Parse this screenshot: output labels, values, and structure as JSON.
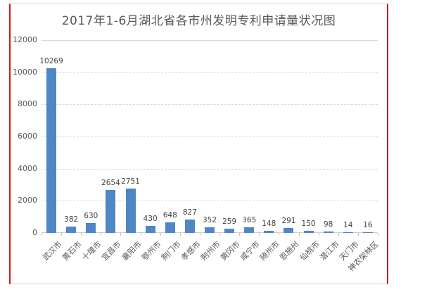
{
  "window": {
    "background": "#FFFFFF"
  },
  "frame": {
    "side_border_color": "#C81A1A",
    "top_border_color": "#D9D9D9",
    "bottom_border_color": "#EACACA"
  },
  "chart_data": {
    "type": "bar",
    "title": "2017年1-6月湖北省各市州发明专利申请量状况图",
    "categories": [
      "武汉市",
      "黄石市",
      "十堰市",
      "宜昌市",
      "襄阳市",
      "鄂州市",
      "荆门市",
      "孝感市",
      "荆州市",
      "黄冈市",
      "咸宁市",
      "随州市",
      "恩施州",
      "仙桃市",
      "潜江市",
      "天门市",
      "神农架林区"
    ],
    "values": [
      10269,
      382,
      630,
      2654,
      2751,
      430,
      648,
      827,
      352,
      259,
      365,
      148,
      291,
      150,
      98,
      14,
      16
    ],
    "xlabel": "",
    "ylabel": "",
    "ylim": [
      0,
      12000
    ],
    "yticks": [
      0,
      2000,
      4000,
      6000,
      8000,
      10000,
      12000
    ],
    "grid": "horizontal-dashed",
    "legend": "none",
    "data_labels": true,
    "bar_color": "#4F86C6",
    "value_label_color": "#404040",
    "axis_text_color": "#595959",
    "gridline_color": "#D9D9D9"
  }
}
